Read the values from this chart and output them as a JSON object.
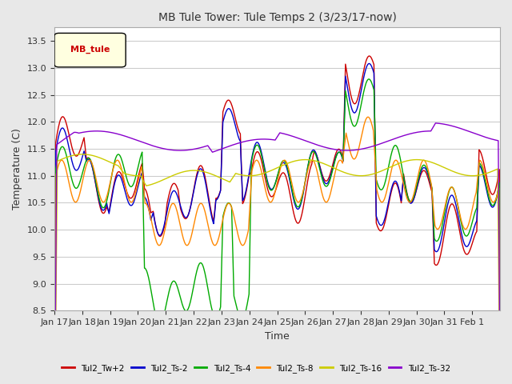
{
  "title": "MB Tule Tower: Tule Temps 2 (3/23/17-now)",
  "xlabel": "Time",
  "ylabel": "Temperature (C)",
  "ylim": [
    8.5,
    13.75
  ],
  "yticks": [
    8.5,
    9.0,
    9.5,
    10.0,
    10.5,
    11.0,
    11.5,
    12.0,
    12.5,
    13.0,
    13.5
  ],
  "x_labels": [
    "Jan 17",
    "Jan 18",
    "Jan 19",
    "Jan 20",
    "Jan 21",
    "Jan 22",
    "Jan 23",
    "Jan 24",
    "Jan 25",
    "Jan 26",
    "Jan 27",
    "Jan 28",
    "Jan 29",
    "Jan 30",
    "Jan 31",
    "Feb 1"
  ],
  "legend_label": "MB_tule",
  "series_labels": [
    "Tul2_Tw+2",
    "Tul2_Ts-2",
    "Tul2_Ts-4",
    "Tul2_Ts-8",
    "Tul2_Ts-16",
    "Tul2_Ts-32"
  ],
  "series_colors": [
    "#cc0000",
    "#0000cc",
    "#00aa00",
    "#ff8800",
    "#cccc00",
    "#8800cc"
  ],
  "background_color": "#e8e8e8",
  "plot_bg_color": "#ffffff",
  "grid_color": "#cccccc"
}
